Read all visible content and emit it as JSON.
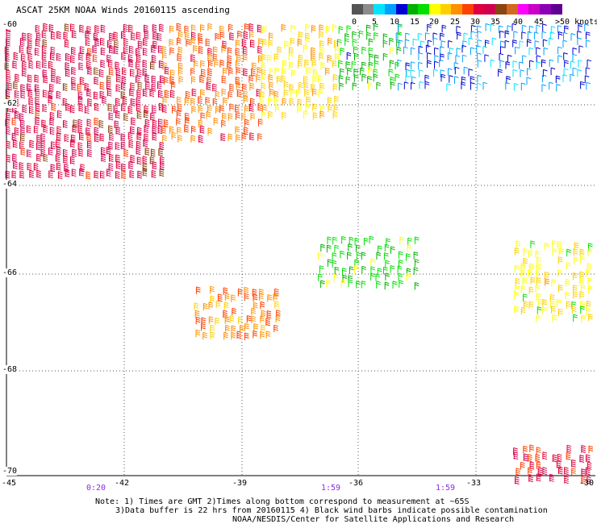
{
  "title": "ASCAT 25KM NOAA Winds 20160115 ascending",
  "colorbar": {
    "colors": [
      "#555555",
      "#8c8c8c",
      "#00e4ff",
      "#00a0ff",
      "#0000d0",
      "#00b000",
      "#00e000",
      "#ffff00",
      "#ffd000",
      "#ff9000",
      "#ff4000",
      "#e0003c",
      "#d00050",
      "#8b4513",
      "#d2691e",
      "#ff00ff",
      "#c800c8",
      "#8c00b4",
      "#600090"
    ],
    "labels": [
      "0",
      "5",
      "10",
      "15",
      "20",
      "25",
      "30",
      "35",
      "40",
      "45",
      ">50 knots"
    ]
  },
  "axes": {
    "lat_labels": [
      "-60",
      "-62",
      "-64",
      "-66",
      "-68",
      "-70"
    ],
    "lon_labels": [
      "-45",
      "-42",
      "-39",
      "-36",
      "-33",
      "-30"
    ]
  },
  "time_labels": [
    "0:20",
    "1:59",
    "1:59"
  ],
  "notes": [
    "Note: 1) Times are GMT 2)Times along bottom correspond to measurement at ~65S",
    "3)Data buffer is 22 hrs from 20160115 4) Black wind barbs indicate possible contamination",
    "NOAA/NESDIS/Center for Satellite Applications and Research"
  ],
  "wind_regions": [
    {
      "name": "northwest-red",
      "lon": [
        -45,
        -41
      ],
      "lat": [
        -60,
        -63.8
      ],
      "speed": 32
    },
    {
      "name": "north-orange",
      "lon": [
        -41,
        -38.5
      ],
      "lat": [
        -60,
        -62.8
      ],
      "speed": 27
    },
    {
      "name": "north-yellow",
      "lon": [
        -38.5,
        -36.5
      ],
      "lat": [
        -60,
        -62.2
      ],
      "speed": 22
    },
    {
      "name": "north-green",
      "lon": [
        -36.5,
        -35
      ],
      "lat": [
        -60,
        -61.5
      ],
      "speed": 16
    },
    {
      "name": "northeast-blue",
      "lon": [
        -35,
        -30
      ],
      "lat": [
        -60,
        -61.5
      ],
      "speed": 10
    },
    {
      "name": "center-orange",
      "lon": [
        -40.2,
        -38
      ],
      "lat": [
        -66.3,
        -67.2
      ],
      "speed": 26
    },
    {
      "name": "mid-green",
      "lon": [
        -37,
        -34.5
      ],
      "lat": [
        -65.2,
        -66.2
      ],
      "speed": 17
    },
    {
      "name": "east-yellow",
      "lon": [
        -32,
        -30
      ],
      "lat": [
        -65.3,
        -67
      ],
      "speed": 21
    },
    {
      "name": "southeast-red",
      "lon": [
        -32,
        -30
      ],
      "lat": [
        -69.5,
        -70.2
      ],
      "speed": 30
    }
  ]
}
